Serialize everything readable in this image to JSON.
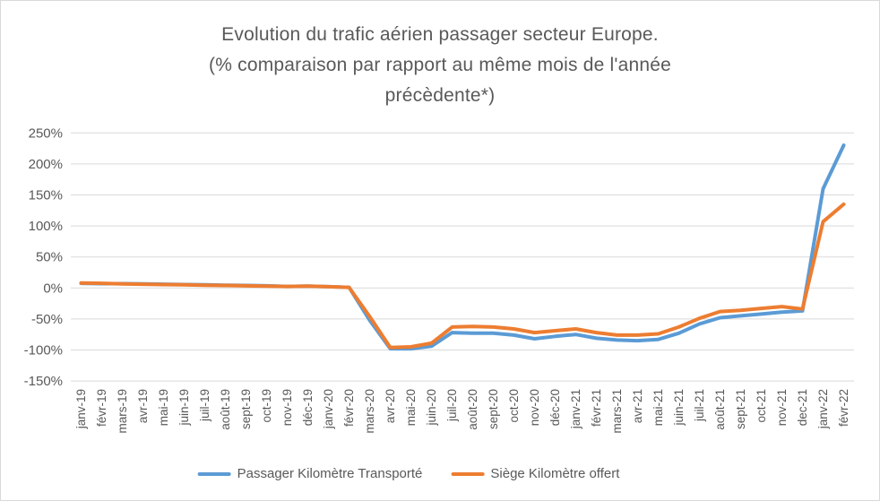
{
  "title": {
    "lines": [
      "Evolution du trafic aérien passager secteur Europe.",
      "(% comparaison par rapport au même mois de l'année",
      "précèdente*)"
    ]
  },
  "colors": {
    "background": "#ffffff",
    "frame_border": "#d9d9d9",
    "gridline": "#d9d9d9",
    "text": "#595959",
    "series_blue": "#5b9bd5",
    "series_orange": "#ed7d31"
  },
  "y_axis": {
    "tick_labels": [
      "250%",
      "200%",
      "150%",
      "100%",
      "50%",
      "0%",
      "-50%",
      "-100%",
      "-150%"
    ]
  },
  "chart_data": {
    "type": "line",
    "title": "Evolution du trafic aérien passager secteur Europe. (% comparaison par rapport au même mois de l'année précèdente*)",
    "categories": [
      "janv-19",
      "févr-19",
      "mars-19",
      "avr-19",
      "mai-19",
      "juin-19",
      "juil-19",
      "août-19",
      "sept-19",
      "oct-19",
      "nov-19",
      "déc-19",
      "janv-20",
      "févr-20",
      "mars-20",
      "avr-20",
      "mai-20",
      "juin-20",
      "juil-20",
      "août-20",
      "sept-20",
      "oct-20",
      "nov-20",
      "déc-20",
      "janv-21",
      "févr-21",
      "mars-21",
      "avr-21",
      "mai-21",
      "juin-21",
      "juil-21",
      "août-21",
      "sept-21",
      "oct-21",
      "nov-21",
      "dec-21",
      "janv-22",
      "févr-22"
    ],
    "series": [
      {
        "name": "Passager Kilomètre Transporté",
        "color": "#5b9bd5",
        "values": [
          7.5,
          7,
          7,
          6.5,
          6,
          5.5,
          5,
          4.5,
          4,
          3.5,
          2.5,
          3,
          2,
          1,
          -52,
          -98,
          -98,
          -94,
          -72,
          -73,
          -73,
          -76,
          -82,
          -78,
          -75,
          -81,
          -84,
          -85,
          -83,
          -73,
          -58,
          -48,
          -45,
          -42,
          -39,
          -37,
          160,
          230
        ]
      },
      {
        "name": "Siège Kilomètre offert",
        "color": "#ed7d31",
        "values": [
          8,
          7.5,
          6.5,
          6,
          5.5,
          5,
          4.5,
          4,
          3.5,
          3,
          2.5,
          3,
          2,
          1,
          -46,
          -96,
          -95,
          -89,
          -63,
          -62,
          -63,
          -66,
          -72,
          -69,
          -66,
          -72,
          -76,
          -76,
          -74,
          -63,
          -49,
          -38,
          -36,
          -33,
          -30,
          -34,
          107,
          135
        ]
      }
    ],
    "ylim": [
      -150,
      250
    ],
    "ytick_step": 50,
    "grid": true,
    "legend_position": "bottom",
    "xlabel": "",
    "ylabel": ""
  }
}
